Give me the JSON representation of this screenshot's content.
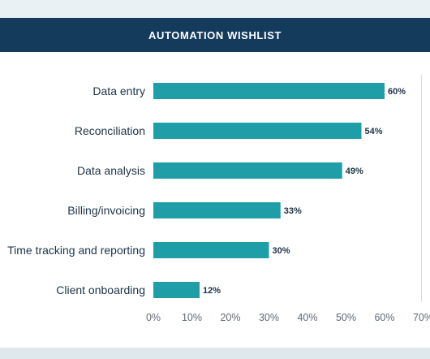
{
  "header": {
    "title": "AUTOMATION WISHLIST"
  },
  "colors": {
    "bar": "#1f9ea8",
    "header_bg": "#143a5c",
    "gridline": "#d9dee3"
  },
  "chart_data": {
    "type": "bar",
    "orientation": "horizontal",
    "title": "AUTOMATION WISHLIST",
    "categories": [
      "Data entry",
      "Reconciliation",
      "Data analysis",
      "Billing/invoicing",
      "Time tracking and reporting",
      "Client onboarding"
    ],
    "values": [
      60,
      54,
      49,
      33,
      30,
      12
    ],
    "value_labels": [
      "60%",
      "54%",
      "49%",
      "33%",
      "30%",
      "12%"
    ],
    "xlim": [
      0,
      70
    ],
    "x_ticks": [
      0,
      10,
      20,
      30,
      40,
      50,
      60,
      70
    ],
    "x_tick_labels": [
      "0%",
      "10%",
      "20%",
      "30%",
      "40%",
      "50%",
      "60%",
      "70%"
    ],
    "xlabel": "",
    "ylabel": "",
    "grid": false,
    "legend": "none"
  }
}
